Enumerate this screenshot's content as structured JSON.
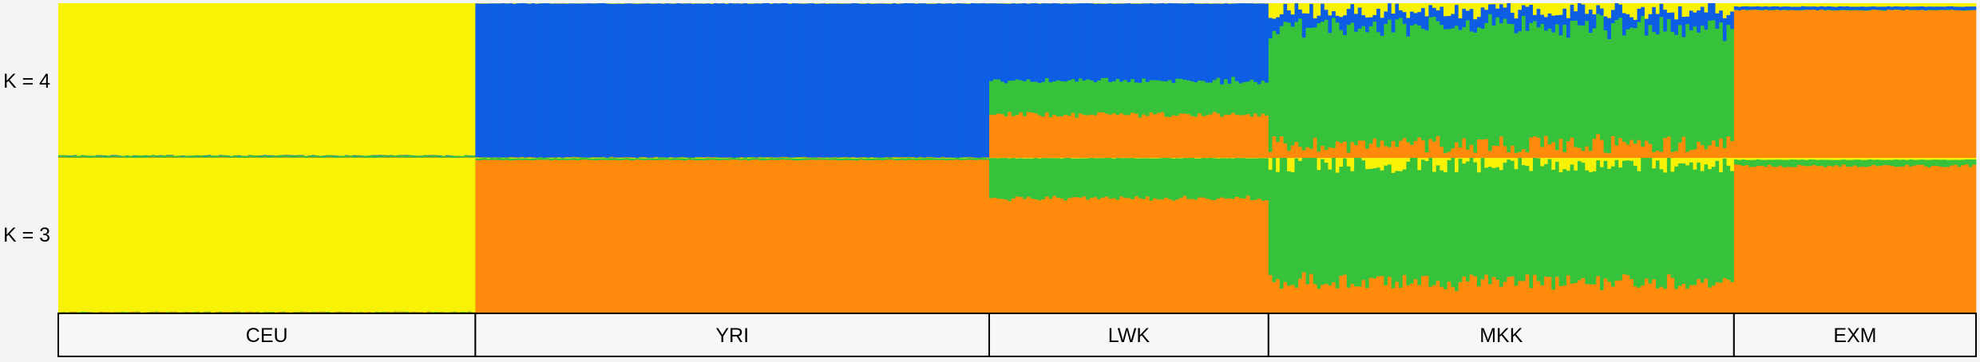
{
  "chart_data": {
    "type": "bar",
    "row_labels": [
      "K = 4",
      "K = 3"
    ],
    "populations": [
      {
        "name": "CEU",
        "n": 112
      },
      {
        "name": "YRI",
        "n": 138
      },
      {
        "name": "LWK",
        "n": 75
      },
      {
        "name": "MKK",
        "n": 125
      },
      {
        "name": "EXM",
        "n": 65
      }
    ],
    "colors": {
      "yellow": "#f8f206",
      "blue": "#0d5ee5",
      "green": "#36c23a",
      "orange": "#ff8a0c"
    },
    "panels": [
      {
        "label": "K = 4",
        "components": [
          "yellow",
          "blue",
          "green",
          "orange"
        ],
        "mean_proportions": {
          "CEU": {
            "yellow": 0.99,
            "blue": 0.0,
            "green": 0.01,
            "orange": 0.0
          },
          "YRI": {
            "yellow": 0.0,
            "blue": 1.0,
            "green": 0.0,
            "orange": 0.0
          },
          "LWK": {
            "yellow": 0.0,
            "blue": 0.5,
            "green": 0.22,
            "orange": 0.28
          },
          "MKK": {
            "yellow": 0.05,
            "blue": 0.1,
            "green": 0.76,
            "orange": 0.09
          },
          "EXM": {
            "yellow": 0.02,
            "blue": 0.02,
            "green": 0.0,
            "orange": 0.96
          }
        }
      },
      {
        "label": "K = 3",
        "components": [
          "yellow",
          "green",
          "orange"
        ],
        "mean_proportions": {
          "CEU": {
            "yellow": 1.0,
            "green": 0.0,
            "orange": 0.0
          },
          "YRI": {
            "yellow": 0.0,
            "green": 0.01,
            "orange": 0.99
          },
          "LWK": {
            "yellow": 0.0,
            "green": 0.26,
            "orange": 0.74
          },
          "MKK": {
            "yellow": 0.04,
            "green": 0.76,
            "orange": 0.2
          },
          "EXM": {
            "yellow": 0.01,
            "green": 0.04,
            "orange": 0.95
          }
        }
      }
    ]
  }
}
